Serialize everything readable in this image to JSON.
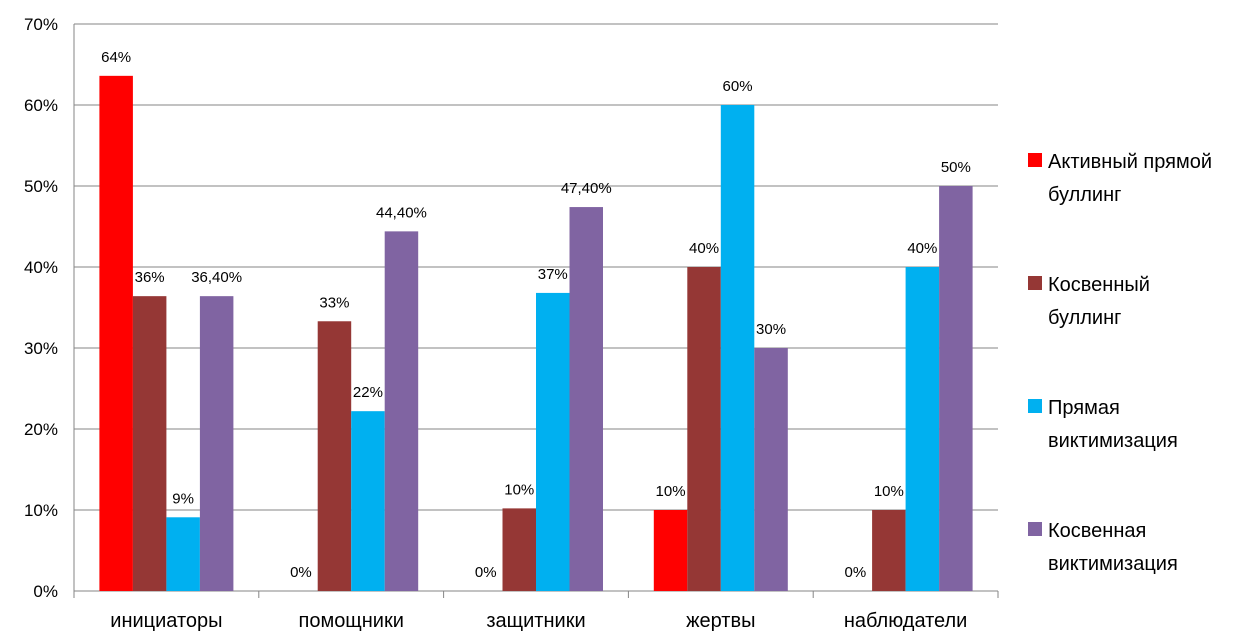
{
  "chart_data": {
    "type": "bar",
    "categories": [
      "инициаторы",
      "помощники",
      "защитники",
      "жертвы",
      "наблюдатели"
    ],
    "series": [
      {
        "name": "Активный прямой буллинг",
        "color": "#FF0000",
        "values": [
          63.6,
          0,
          0,
          10,
          0
        ],
        "labels": [
          "64%",
          "0%",
          "0%",
          "10%",
          "0%"
        ]
      },
      {
        "name": "Косвенный буллинг",
        "color": "#953735",
        "values": [
          36.4,
          33.3,
          10.2,
          40,
          10
        ],
        "labels": [
          "36%",
          "33%",
          "10%",
          "40%",
          "10%"
        ]
      },
      {
        "name": "Прямая виктимизация",
        "color": "#00B0F0",
        "values": [
          9.1,
          22.2,
          36.8,
          60,
          40
        ],
        "labels": [
          "9%",
          "22%",
          "37%",
          "60%",
          "40%"
        ]
      },
      {
        "name": "Косвенная виктимизация",
        "color": "#8064A2",
        "values": [
          36.4,
          44.4,
          47.4,
          30,
          50
        ],
        "labels": [
          "36,40%",
          "44,40%",
          "47,40%",
          "30%",
          "50%"
        ]
      }
    ],
    "ylim": [
      0,
      70
    ],
    "yticks": [
      "0%",
      "10%",
      "20%",
      "30%",
      "40%",
      "50%",
      "60%",
      "70%"
    ],
    "grid": true,
    "legend_position": "right",
    "title": "",
    "xlabel": "",
    "ylabel": ""
  }
}
